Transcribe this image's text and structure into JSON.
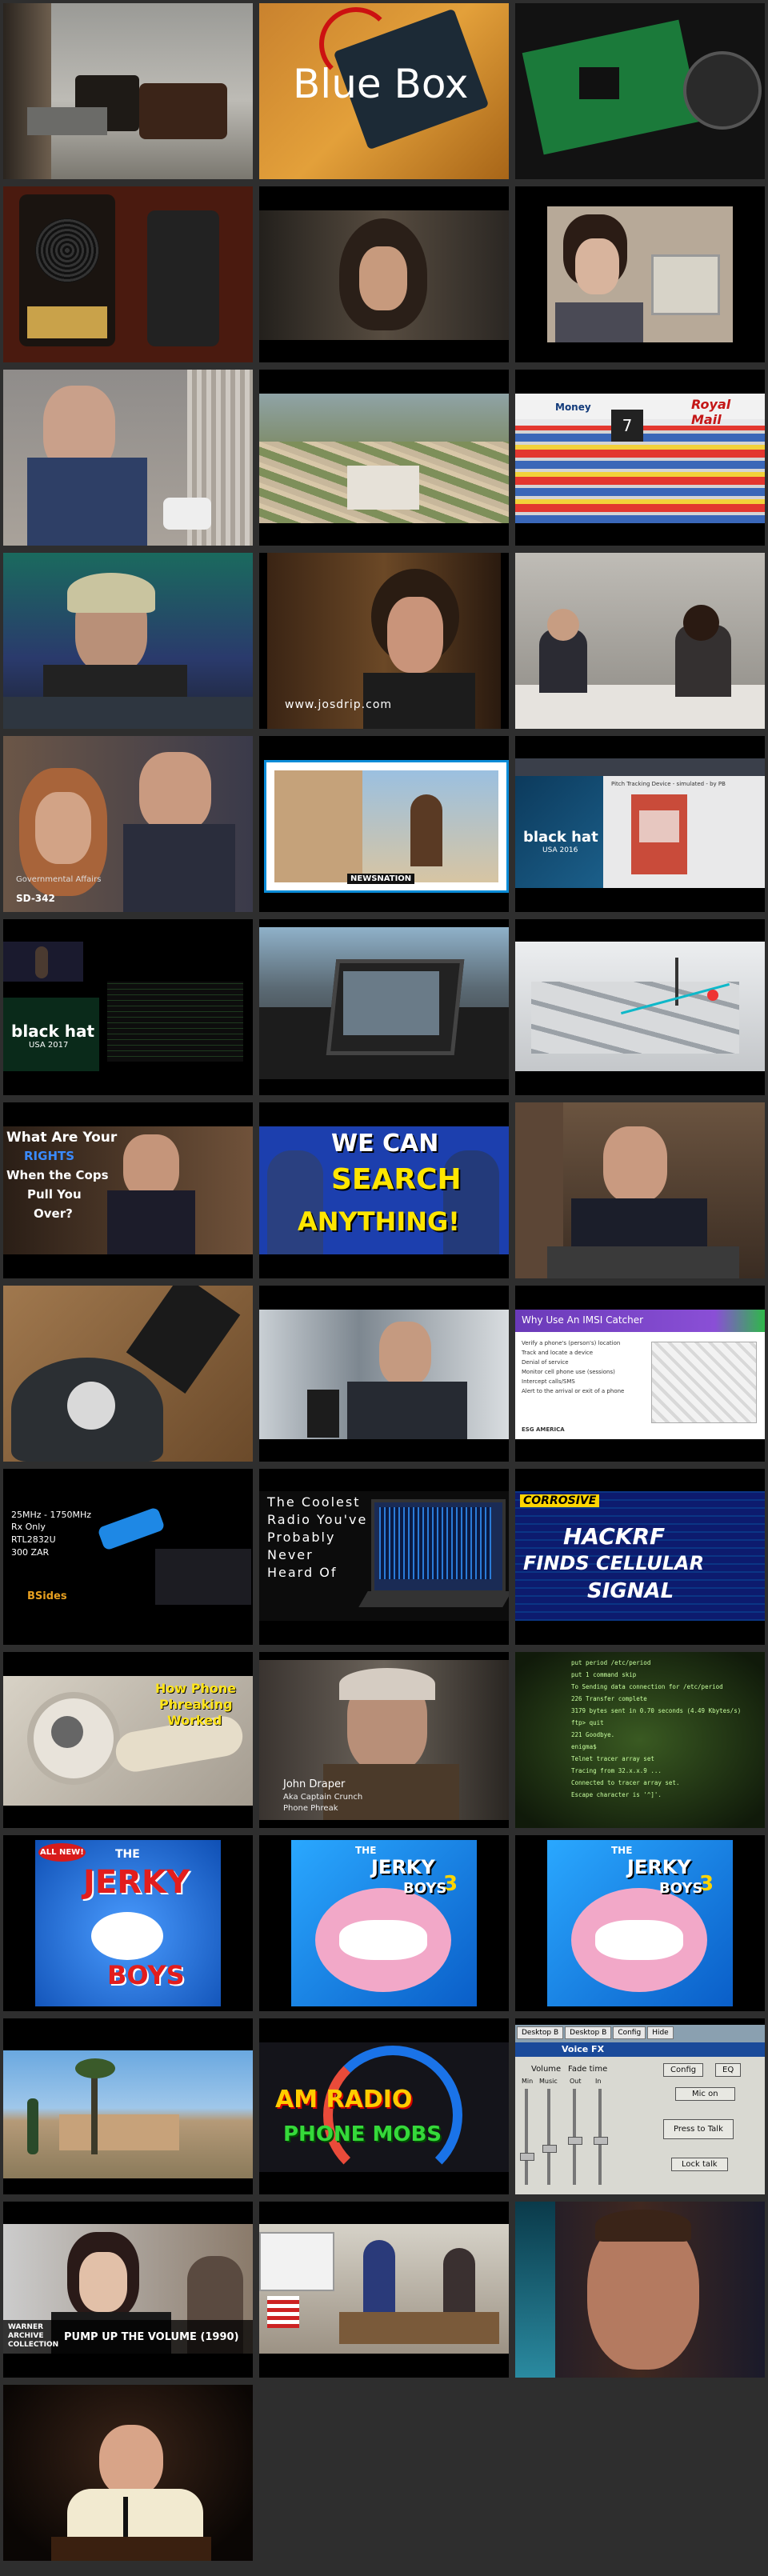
{
  "tiles": [
    {
      "r": 0,
      "c": 0,
      "name": "thumb-phone-device-desk"
    },
    {
      "r": 0,
      "c": 1,
      "name": "thumb-blue-box",
      "title": "Blue Box"
    },
    {
      "r": 0,
      "c": 2,
      "name": "thumb-circuit-board"
    },
    {
      "r": 1,
      "c": 0,
      "name": "thumb-speaker-remote"
    },
    {
      "r": 1,
      "c": 1,
      "name": "thumb-man-curly-hair"
    },
    {
      "r": 1,
      "c": 2,
      "name": "thumb-man-computer"
    },
    {
      "r": 2,
      "c": 0,
      "name": "thumb-man-on-phone"
    },
    {
      "r": 2,
      "c": 1,
      "name": "thumb-aerial-suburb"
    },
    {
      "r": 2,
      "c": 2,
      "name": "thumb-store-shelves",
      "labels": [
        "Money",
        "Royal Mail"
      ]
    },
    {
      "r": 3,
      "c": 0,
      "name": "thumb-man-headset"
    },
    {
      "r": 3,
      "c": 1,
      "name": "thumb-josdrip",
      "caption": "www.josdrip.com"
    },
    {
      "r": 3,
      "c": 2,
      "name": "thumb-interview-room"
    },
    {
      "r": 4,
      "c": 0,
      "name": "thumb-hearing",
      "caption": "Governmental Affairs",
      "code": "SD-342"
    },
    {
      "r": 4,
      "c": 1,
      "name": "thumb-newsnation",
      "caption": "NEWSNATION"
    },
    {
      "r": 4,
      "c": 2,
      "name": "thumb-blackhat-slide",
      "brand": "black hat",
      "sub": "USA 2016",
      "slide_title": "Pitch Tracking Device - simulated - by PB"
    },
    {
      "r": 5,
      "c": 0,
      "name": "thumb-blackhat-2017",
      "brand": "black hat",
      "sub": "USA 2017"
    },
    {
      "r": 5,
      "c": 1,
      "name": "thumb-car-laptop"
    },
    {
      "r": 5,
      "c": 2,
      "name": "thumb-3d-city"
    },
    {
      "r": 6,
      "c": 0,
      "name": "thumb-rights-cops",
      "lines": [
        "What Are Your",
        "RIGHTS",
        "When the Cops",
        "Pull You",
        "Over?"
      ]
    },
    {
      "r": 6,
      "c": 1,
      "name": "thumb-we-can-search",
      "lines": [
        "WE CAN",
        "SEARCH",
        "ANYTHING!"
      ]
    },
    {
      "r": 6,
      "c": 2,
      "name": "thumb-man-lectern"
    },
    {
      "r": 7,
      "c": 0,
      "name": "thumb-phone-lock"
    },
    {
      "r": 7,
      "c": 1,
      "name": "thumb-man-speaking"
    },
    {
      "r": 7,
      "c": 2,
      "name": "thumb-imsi-catcher",
      "title": "Why Use An IMSI Catcher",
      "bullets": [
        "Verify a phone's (person's) location",
        "Track and locate a device",
        "Denial of service",
        "Monitor cell phone use (sessions)",
        "Intercept calls/SMS",
        "Alert to the arrival or exit of a phone"
      ],
      "footer": "ESG AMERICA"
    },
    {
      "r": 8,
      "c": 0,
      "name": "thumb-rtl-sdr",
      "bullets": [
        "25MHz - 1750MHz",
        "Rx Only",
        "RTL2832U",
        "300 ZAR"
      ],
      "brand": "BSides"
    },
    {
      "r": 8,
      "c": 1,
      "name": "thumb-coolest-radio",
      "lines": [
        "The Coolest",
        "Radio You've",
        "Probably",
        "Never",
        "Heard Of"
      ]
    },
    {
      "r": 8,
      "c": 2,
      "name": "thumb-hackrf",
      "tag": "CORROSIVE",
      "lines": [
        "HACKRF",
        "FINDS CELLULAR",
        "SIGNAL"
      ]
    },
    {
      "r": 9,
      "c": 0,
      "name": "thumb-phone-phreaking",
      "lines": [
        "How Phone",
        "Phreaking",
        "Worked"
      ]
    },
    {
      "r": 9,
      "c": 1,
      "name": "thumb-john-draper",
      "lines": [
        "John Draper",
        "Aka Captain Crunch",
        "Phone Phreak"
      ]
    },
    {
      "r": 9,
      "c": 2,
      "name": "thumb-terminal-text",
      "lines": [
        "put period /etc/period",
        "put 1 command skip",
        "To Sending data connection for /etc/period",
        "226 Transfer complete",
        "3179 bytes sent in 0.70 seconds (4.49 Kbytes/s)",
        "ftp> quit",
        "221 Goodbye.",
        "enigma$",
        "Telnet tracer array set",
        "Tracing from 32.x.x.9 ...",
        "Connected to tracer array set.",
        "Escape character is '^]'."
      ]
    },
    {
      "r": 10,
      "c": 0,
      "name": "thumb-jerky-boys-1",
      "badge": "ALL NEW!",
      "lines": [
        "THE",
        "JERKY",
        "BOYS"
      ]
    },
    {
      "r": 10,
      "c": 1,
      "name": "thumb-jerky-boys-3a",
      "lines": [
        "THE",
        "JERKY",
        "3",
        "BOYS"
      ]
    },
    {
      "r": 10,
      "c": 2,
      "name": "thumb-jerky-boys-3b",
      "lines": [
        "THE",
        "JERKY",
        "3",
        "BOYS"
      ]
    },
    {
      "r": 11,
      "c": 0,
      "name": "thumb-desert-house"
    },
    {
      "r": 11,
      "c": 1,
      "name": "thumb-am-radio",
      "lines": [
        "AM RADIO",
        "PHONE MOBS"
      ]
    },
    {
      "r": 11,
      "c": 2,
      "name": "thumb-voice-fx",
      "window_title": "Voice FX",
      "tabs": [
        "Desktop B",
        "Desktop B",
        "Config",
        "Hide"
      ],
      "labels": [
        "Volume",
        "Fade time",
        "Min",
        "Music",
        "Out",
        "In",
        "Config",
        "EQ",
        "Mic on",
        "Press to Talk",
        "Lock talk"
      ]
    },
    {
      "r": 12,
      "c": 0,
      "name": "thumb-pump-up-volume",
      "brand": "WARNER ARCHIVE COLLECTION",
      "caption": "PUMP UP THE VOLUME (1990)"
    },
    {
      "r": 12,
      "c": 1,
      "name": "thumb-classroom"
    },
    {
      "r": 12,
      "c": 2,
      "name": "thumb-man-close-up"
    },
    {
      "r": 13,
      "c": 0,
      "name": "thumb-man-podium"
    }
  ]
}
